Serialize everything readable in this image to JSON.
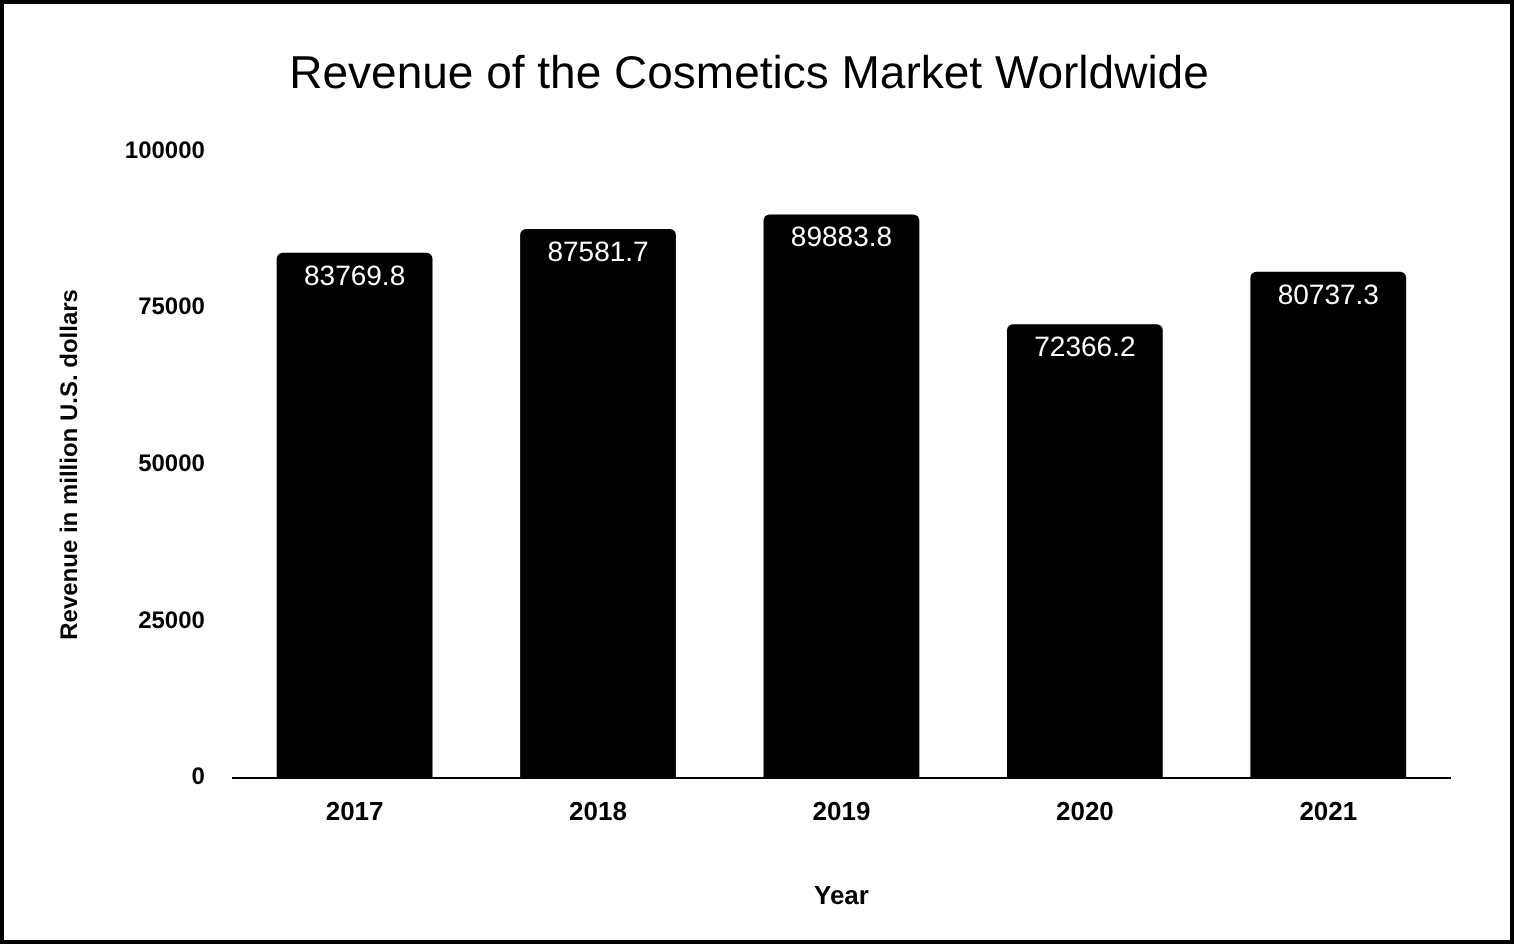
{
  "chart_data": {
    "type": "bar",
    "title": "Revenue of the Cosmetics Market Worldwide",
    "xlabel": "Year",
    "ylabel": "Revenue in million U.S. dollars",
    "categories": [
      "2017",
      "2018",
      "2019",
      "2020",
      "2021"
    ],
    "values": [
      83769.8,
      87581.7,
      89883.8,
      72366.2,
      80737.3
    ],
    "color": "#000000",
    "ylim": [
      0,
      100000
    ],
    "yticks": [
      0,
      25000,
      50000,
      75000,
      100000
    ],
    "grid": false,
    "legend": false,
    "data_labels": true
  }
}
